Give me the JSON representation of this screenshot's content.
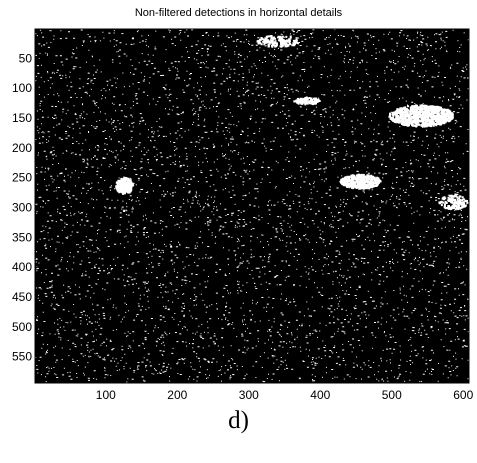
{
  "figure": {
    "title": "Non-filtered detections in horizontal details",
    "caption": "d)",
    "background_color": "#000000",
    "detection_color": "#ffffff"
  },
  "axes": {
    "x_ticks": [
      "100",
      "200",
      "300",
      "400",
      "500",
      "600"
    ],
    "y_ticks": [
      "50",
      "100",
      "150",
      "200",
      "250",
      "300",
      "350",
      "400",
      "450",
      "500",
      "550"
    ],
    "x_range": [
      1,
      608
    ],
    "y_range": [
      1,
      594
    ]
  }
}
